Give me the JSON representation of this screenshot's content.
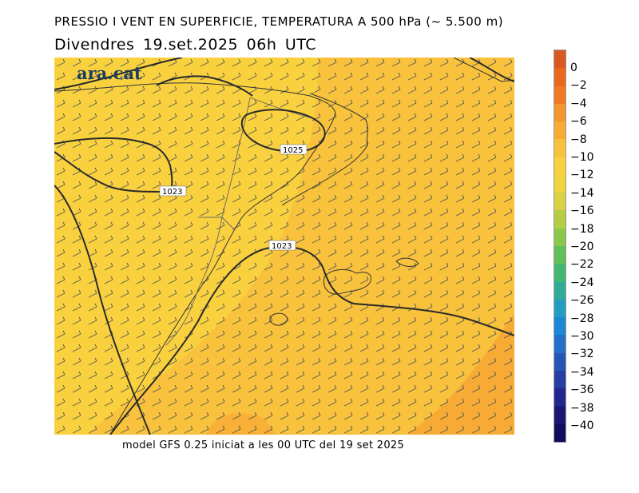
{
  "header": {
    "title": "PRESSIO I VENT EN SUPERFICIE, TEMPERATURA A 500 hPa (~ 5.500 m)",
    "date": "Divendres  19.set.2025 06h UTC"
  },
  "logo": {
    "text": "ara.cat"
  },
  "isobars": [
    {
      "label": "1025"
    },
    {
      "label": "1023"
    },
    {
      "label": "1023"
    }
  ],
  "colorbar": {
    "labels": [
      "0",
      "−2",
      "−4",
      "−6",
      "−8",
      "−10",
      "−12",
      "−14",
      "−16",
      "−18",
      "−20",
      "−22",
      "−24",
      "−26",
      "−28",
      "−30",
      "−32",
      "−34",
      "−36",
      "−38",
      "−40"
    ],
    "colors": [
      "#d85a1e",
      "#e86a20",
      "#f07a24",
      "#f49630",
      "#f7ab35",
      "#f8c23c",
      "#f9d13f",
      "#efd43e",
      "#dcd044",
      "#b6cc45",
      "#8cc64b",
      "#63bf57",
      "#44b771",
      "#31ab96",
      "#249ec0",
      "#1e87d6",
      "#2370c9",
      "#2755b6",
      "#283ea3",
      "#22278e",
      "#1a1873",
      "#120c5c"
    ]
  },
  "footer": {
    "text": "model GFS 0.25 iniciat a les 00 UTC del 19 set 2025"
  }
}
